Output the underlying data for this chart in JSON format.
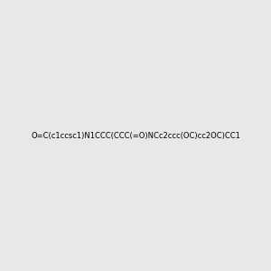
{
  "smiles": "O=C(c1ccsc1)N1CCC(CCC(=O)NCc2ccc(OC)cc2OC)CC1",
  "image_size": 300,
  "background_color": "#e8e8e8",
  "atom_colors": {
    "O": "#ff0000",
    "N": "#0000ff",
    "S": "#cccc00",
    "C": "#000000",
    "H": "#008080"
  }
}
